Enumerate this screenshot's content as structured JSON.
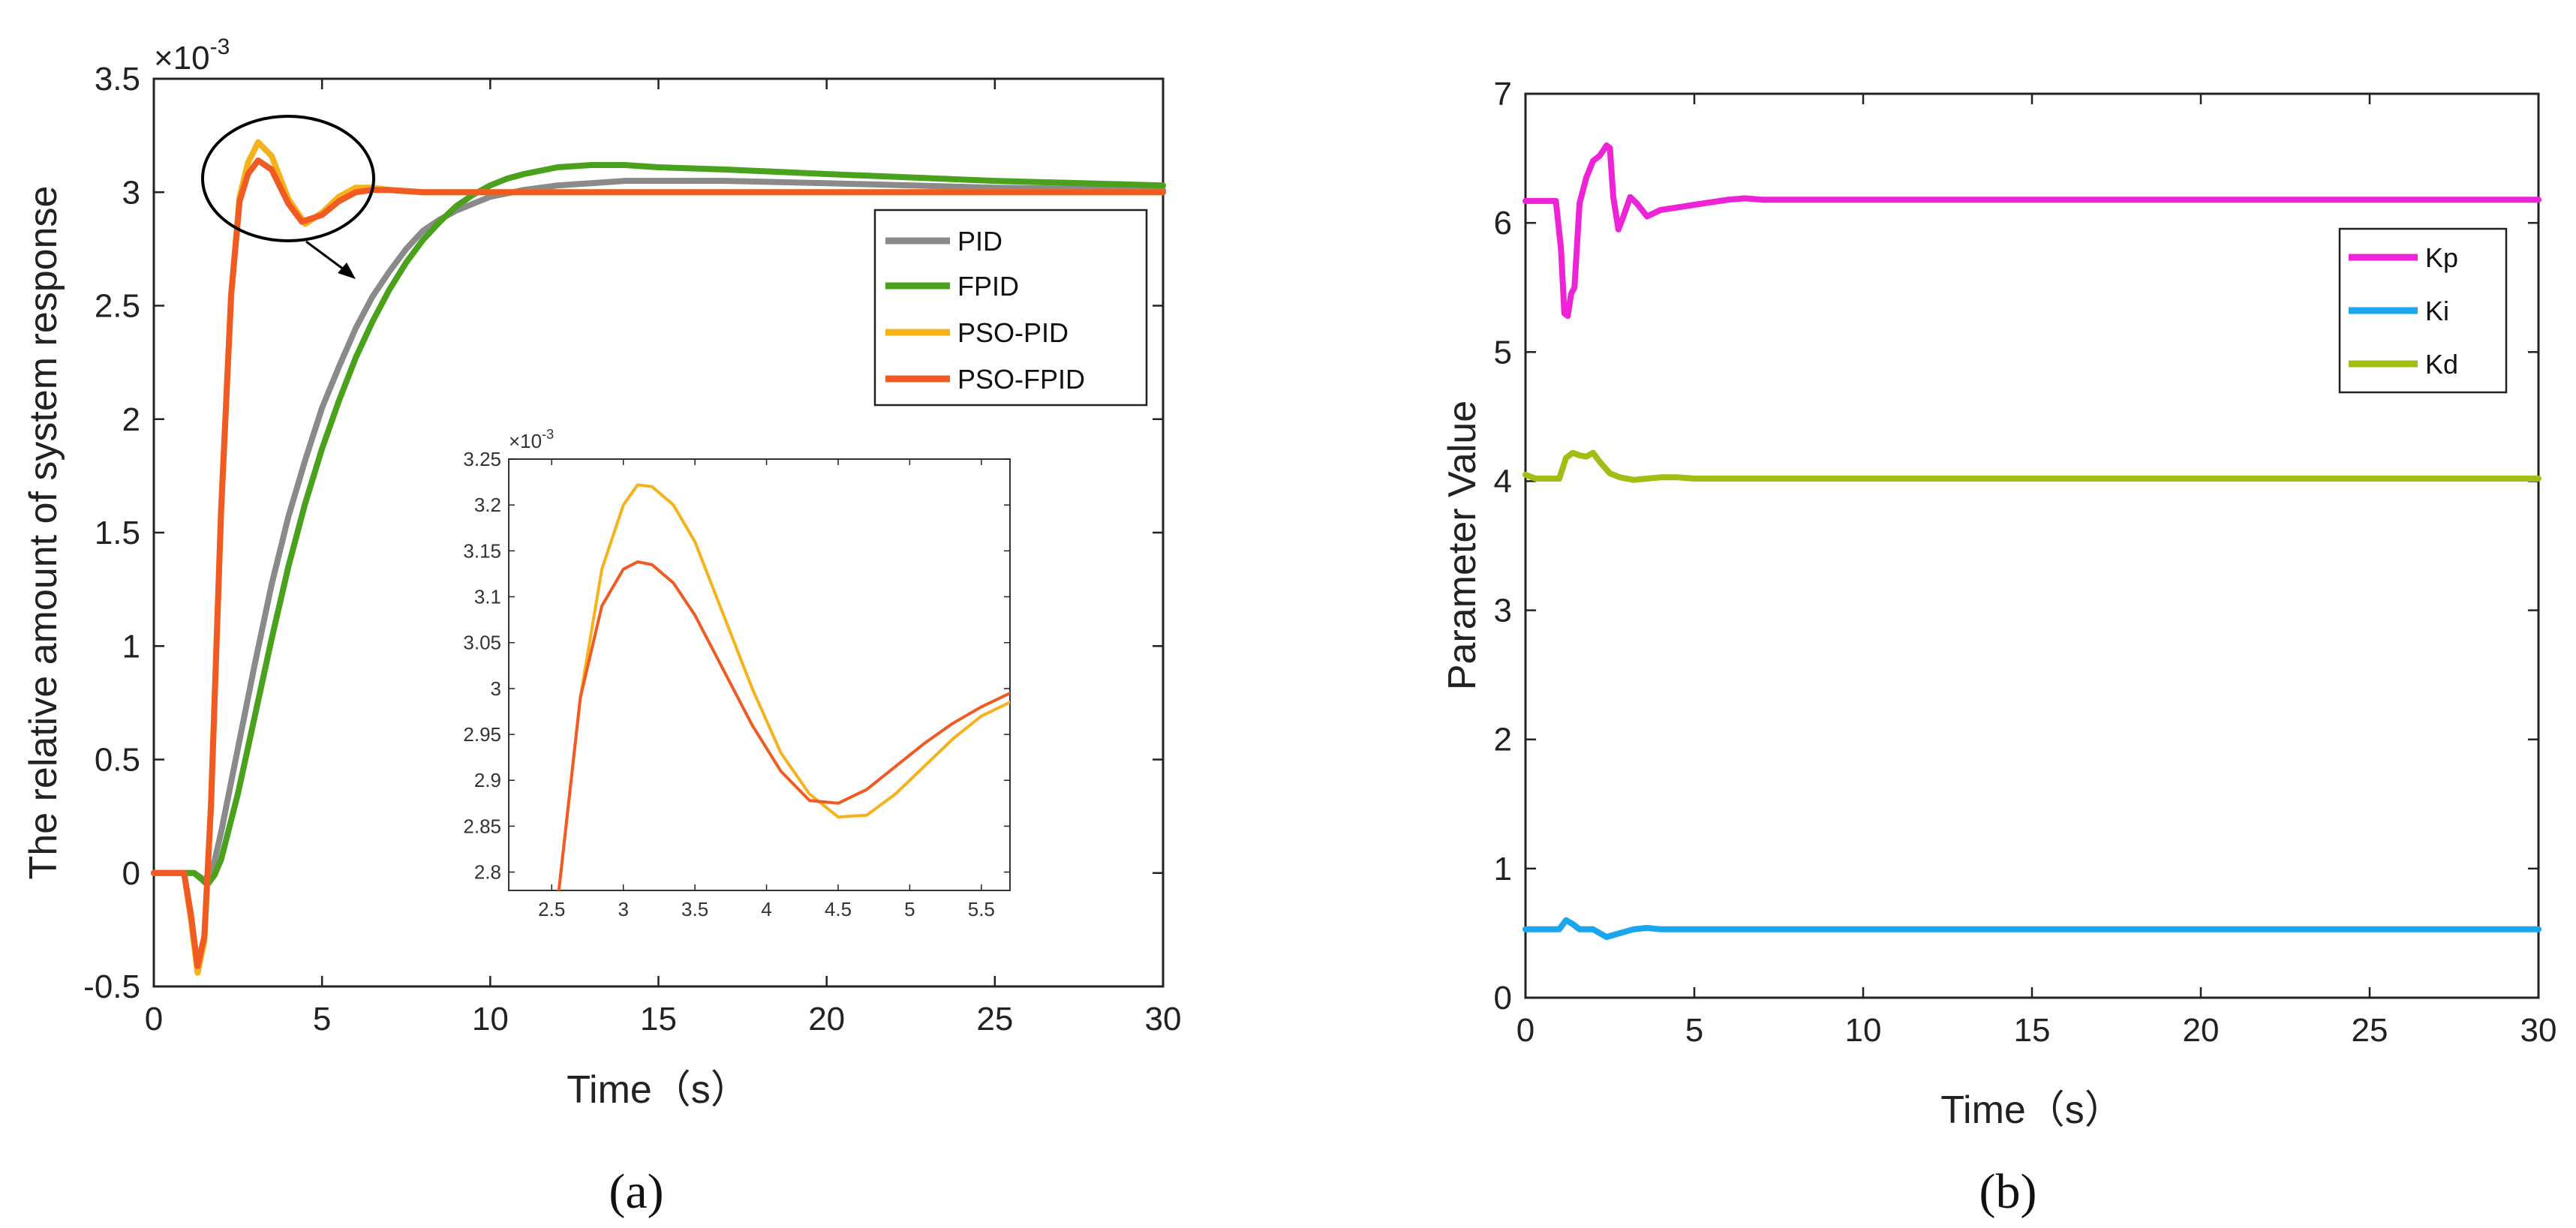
{
  "figure": {
    "caption_a": "(a)",
    "caption_b": "(b)"
  },
  "chart_data": [
    {
      "type": "line",
      "title": "",
      "xlabel": "Time（s）",
      "ylabel": "The relative amount of system response",
      "y_multiplier_label": "×10",
      "y_multiplier_exp": "-3",
      "xlim": [
        0,
        30
      ],
      "ylim": [
        -0.5,
        3.5
      ],
      "xticks": [
        "0",
        "5",
        "10",
        "15",
        "20",
        "25",
        "30"
      ],
      "yticks": [
        "-0.5",
        "0",
        "0.5",
        "1",
        "1.5",
        "2",
        "2.5",
        "3",
        "3.5"
      ],
      "legend_position": "right",
      "series": [
        {
          "name": "PID",
          "color": "#8a8a8a",
          "x": [
            0,
            1.2,
            1.4,
            1.5,
            1.8,
            2,
            2.5,
            3,
            3.5,
            4,
            4.5,
            5,
            5.5,
            6,
            6.5,
            7,
            7.5,
            8,
            8.5,
            9,
            10,
            11,
            12,
            13,
            14,
            15,
            17,
            20,
            25,
            30
          ],
          "y": [
            0,
            0,
            -0.02,
            -0.04,
            0.05,
            0.18,
            0.55,
            0.92,
            1.27,
            1.57,
            1.82,
            2.05,
            2.23,
            2.4,
            2.54,
            2.65,
            2.75,
            2.83,
            2.88,
            2.92,
            2.98,
            3.01,
            3.03,
            3.04,
            3.05,
            3.05,
            3.05,
            3.04,
            3.02,
            3.01
          ]
        },
        {
          "name": "FPID",
          "color": "#4aa11c",
          "x": [
            0,
            1.2,
            1.6,
            1.8,
            2,
            2.5,
            3,
            3.5,
            4,
            4.5,
            5,
            5.5,
            6,
            6.5,
            7,
            7.5,
            8,
            8.5,
            9,
            9.5,
            10,
            10.5,
            11,
            12,
            13,
            14,
            15,
            17,
            20,
            25,
            30
          ],
          "y": [
            0,
            0,
            -0.05,
            -0.01,
            0.06,
            0.35,
            0.69,
            1.03,
            1.35,
            1.63,
            1.87,
            2.08,
            2.27,
            2.43,
            2.57,
            2.69,
            2.79,
            2.87,
            2.94,
            2.99,
            3.03,
            3.06,
            3.08,
            3.11,
            3.12,
            3.12,
            3.11,
            3.1,
            3.08,
            3.05,
            3.03
          ]
        },
        {
          "name": "PSO-PID",
          "color": "#f6b21b",
          "x": [
            0,
            0.9,
            1.1,
            1.3,
            1.5,
            1.7,
            2,
            2.3,
            2.55,
            2.8,
            3.1,
            3.5,
            4,
            4.5,
            5,
            5.5,
            6,
            6.5,
            7,
            8,
            10,
            15,
            20,
            25,
            30
          ],
          "y": [
            0,
            0,
            -0.2,
            -0.44,
            -0.3,
            0.3,
            1.6,
            2.55,
            2.98,
            3.13,
            3.22,
            3.16,
            2.97,
            2.86,
            2.91,
            2.98,
            3.02,
            3.02,
            3.01,
            3.0,
            3.0,
            3.0,
            3.0,
            3.0,
            3.0
          ]
        },
        {
          "name": "PSO-FPID",
          "color": "#f05a23",
          "x": [
            0,
            0.9,
            1.1,
            1.3,
            1.5,
            1.7,
            2,
            2.3,
            2.55,
            2.8,
            3.1,
            3.5,
            4,
            4.4,
            5,
            5.5,
            6,
            6.5,
            7,
            8,
            10,
            15,
            20,
            25,
            30
          ],
          "y": [
            0,
            0,
            -0.18,
            -0.41,
            -0.28,
            0.3,
            1.6,
            2.55,
            2.96,
            3.08,
            3.14,
            3.1,
            2.95,
            2.87,
            2.9,
            2.96,
            3.0,
            3.01,
            3.01,
            3.0,
            3.0,
            3.0,
            3.0,
            3.0,
            3.0
          ]
        }
      ]
    },
    {
      "type": "line",
      "title": "",
      "role": "inset zoom of panel (a)",
      "xlabel": "",
      "ylabel": "",
      "y_multiplier_label": "×10",
      "y_multiplier_exp": "-3",
      "xlim": [
        2.2,
        5.7
      ],
      "ylim": [
        2.78,
        3.25
      ],
      "xticks": [
        "2.5",
        "3",
        "3.5",
        "4",
        "4.5",
        "5",
        "5.5"
      ],
      "yticks": [
        "2.8",
        "2.85",
        "2.9",
        "2.95",
        "3",
        "3.05",
        "3.1",
        "3.15",
        "3.2",
        "3.25"
      ],
      "series": [
        {
          "name": "PSO-PID",
          "color": "#f6b21b",
          "x": [
            2.55,
            2.7,
            2.85,
            3.0,
            3.1,
            3.2,
            3.35,
            3.5,
            3.7,
            3.9,
            4.1,
            4.3,
            4.5,
            4.7,
            4.9,
            5.1,
            5.3,
            5.5,
            5.7
          ],
          "y": [
            2.78,
            2.99,
            3.13,
            3.2,
            3.222,
            3.22,
            3.2,
            3.16,
            3.08,
            3.0,
            2.93,
            2.885,
            2.86,
            2.862,
            2.885,
            2.915,
            2.945,
            2.97,
            2.985
          ]
        },
        {
          "name": "PSO-FPID",
          "color": "#f05a23",
          "x": [
            2.55,
            2.7,
            2.85,
            3.0,
            3.1,
            3.2,
            3.35,
            3.5,
            3.7,
            3.9,
            4.1,
            4.3,
            4.5,
            4.7,
            4.9,
            5.1,
            5.3,
            5.5,
            5.7
          ],
          "y": [
            2.78,
            2.99,
            3.09,
            3.13,
            3.138,
            3.135,
            3.115,
            3.08,
            3.02,
            2.96,
            2.91,
            2.878,
            2.875,
            2.89,
            2.915,
            2.94,
            2.962,
            2.98,
            2.995
          ]
        }
      ]
    },
    {
      "type": "line",
      "title": "",
      "xlabel": "Time（s）",
      "ylabel": "Parameter Value",
      "xlim": [
        0,
        30
      ],
      "ylim": [
        0,
        7
      ],
      "xticks": [
        "0",
        "5",
        "10",
        "15",
        "20",
        "25",
        "30"
      ],
      "yticks": [
        "0",
        "1",
        "2",
        "3",
        "4",
        "5",
        "6",
        "7"
      ],
      "legend_position": "right",
      "series": [
        {
          "name": "Kp",
          "color": "#ee22d6",
          "x": [
            0,
            0.9,
            1.05,
            1.15,
            1.25,
            1.35,
            1.45,
            1.6,
            1.8,
            2.0,
            2.2,
            2.4,
            2.5,
            2.6,
            2.75,
            2.9,
            3.1,
            3.3,
            3.6,
            4,
            4.5,
            5,
            5.5,
            6,
            6.5,
            7,
            8,
            10,
            15,
            20,
            25,
            30
          ],
          "y": [
            6.17,
            6.17,
            5.8,
            5.3,
            5.28,
            5.45,
            5.5,
            6.15,
            6.35,
            6.48,
            6.52,
            6.6,
            6.58,
            6.2,
            5.95,
            6.05,
            6.2,
            6.15,
            6.05,
            6.1,
            6.12,
            6.14,
            6.16,
            6.18,
            6.19,
            6.18,
            6.18,
            6.18,
            6.18,
            6.18,
            6.18,
            6.18
          ]
        },
        {
          "name": "Ki",
          "color": "#1aa6ee",
          "x": [
            0,
            1.0,
            1.2,
            1.4,
            1.6,
            2.0,
            2.4,
            2.8,
            3.2,
            3.6,
            4,
            5,
            6,
            8,
            10,
            15,
            20,
            25,
            30
          ],
          "y": [
            0.53,
            0.53,
            0.6,
            0.57,
            0.53,
            0.53,
            0.47,
            0.5,
            0.53,
            0.54,
            0.53,
            0.53,
            0.53,
            0.53,
            0.53,
            0.53,
            0.53,
            0.53,
            0.53
          ]
        },
        {
          "name": "Kd",
          "color": "#a2be15",
          "x": [
            0,
            0.3,
            1.0,
            1.2,
            1.4,
            1.6,
            1.8,
            2.0,
            2.2,
            2.5,
            2.8,
            3.2,
            3.6,
            4,
            4.5,
            5,
            6,
            8,
            10,
            15,
            20,
            25,
            30
          ],
          "y": [
            4.05,
            4.02,
            4.02,
            4.18,
            4.22,
            4.2,
            4.19,
            4.22,
            4.15,
            4.06,
            4.03,
            4.01,
            4.02,
            4.03,
            4.03,
            4.02,
            4.02,
            4.02,
            4.02,
            4.02,
            4.02,
            4.02,
            4.02
          ]
        }
      ]
    }
  ]
}
